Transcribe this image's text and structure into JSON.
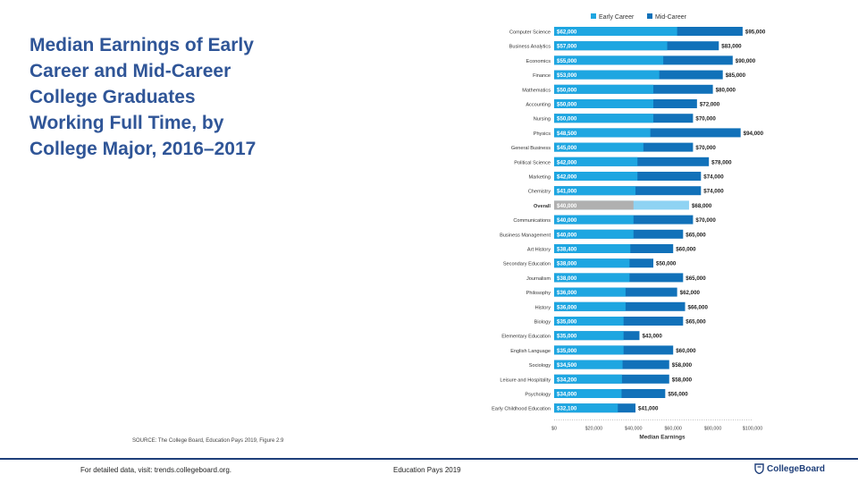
{
  "title": "Median Earnings of Early Career and Mid-Career College Graduates Working Full Time, by College Major, 2016–2017",
  "source": "SOURCE: The College Board, Education Pays 2019, Figure 2.9",
  "footer": {
    "left": "For detailed data, visit: trends.collegeboard.org.",
    "middle": "Education Pays 2019",
    "logo_text": "CollegeBoard",
    "logo_icon": "shield-icon"
  },
  "colors": {
    "early": "#1ea6e1",
    "mid": "#1171b9",
    "overall_early": "#b0b0b0",
    "overall_mid": "#8fd3f3",
    "title": "#2f5597"
  },
  "chart_data": {
    "type": "bar",
    "orientation": "horizontal",
    "stacked_overlay": true,
    "title": "",
    "xlabel": "Median Earnings",
    "ylabel": "",
    "xlim": [
      0,
      100000
    ],
    "x_ticks": [
      "$0",
      "$20,000",
      "$40,000",
      "$60,000",
      "$80,000",
      "$100,000"
    ],
    "legend": {
      "placement": "top",
      "entries": [
        "Early Career",
        "Mid-Career"
      ]
    },
    "categories": [
      "Computer Science",
      "Business Analytics",
      "Economics",
      "Finance",
      "Mathematics",
      "Accounting",
      "Nursing",
      "Physics",
      "General Business",
      "Political Science",
      "Marketing",
      "Chemistry",
      "Overall",
      "Communications",
      "Business Management",
      "Art History",
      "Secondary Education",
      "Journalism",
      "Philosophy",
      "History",
      "Biology",
      "Elementary Education",
      "English Language",
      "Sociology",
      "Leisure and Hospitality",
      "Psychology",
      "Early Childhood Education"
    ],
    "series": [
      {
        "name": "Early Career",
        "values": [
          62000,
          57000,
          55000,
          53000,
          50000,
          50000,
          50000,
          48500,
          45000,
          42000,
          42000,
          41000,
          40000,
          40000,
          40000,
          38400,
          38000,
          38000,
          36000,
          36000,
          35000,
          35000,
          35000,
          34500,
          34200,
          34000,
          32100
        ],
        "labels": [
          "$62,000",
          "$57,000",
          "$55,000",
          "$53,000",
          "$50,000",
          "$50,000",
          "$50,000",
          "$48,500",
          "$45,000",
          "$42,000",
          "$42,000",
          "$41,000",
          "$40,000",
          "$40,000",
          "$40,000",
          "$38,400",
          "$38,000",
          "$38,000",
          "$36,000",
          "$36,000",
          "$35,000",
          "$35,000",
          "$35,000",
          "$34,500",
          "$34,200",
          "$34,000",
          "$32,100"
        ]
      },
      {
        "name": "Mid-Career",
        "values": [
          95000,
          83000,
          90000,
          85000,
          80000,
          72000,
          70000,
          94000,
          70000,
          78000,
          74000,
          74000,
          68000,
          70000,
          65000,
          60000,
          50000,
          65000,
          62000,
          66000,
          65000,
          43000,
          60000,
          58000,
          58000,
          56000,
          41000
        ],
        "labels": [
          "$95,000",
          "$83,000",
          "$90,000",
          "$85,000",
          "$80,000",
          "$72,000",
          "$70,000",
          "$94,000",
          "$70,000",
          "$78,000",
          "$74,000",
          "$74,000",
          "$68,000",
          "$70,000",
          "$65,000",
          "$60,000",
          "$50,000",
          "$65,000",
          "$62,000",
          "$66,000",
          "$65,000",
          "$43,000",
          "$60,000",
          "$58,000",
          "$58,000",
          "$56,000",
          "$41,000"
        ]
      }
    ],
    "highlight_category": "Overall"
  }
}
